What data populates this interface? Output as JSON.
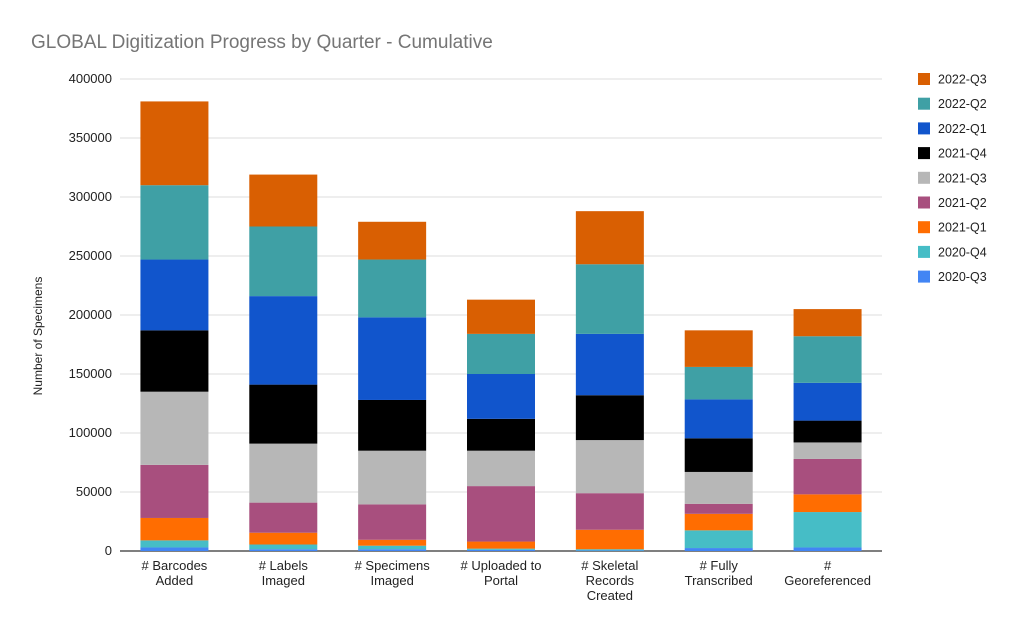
{
  "chart_data": {
    "type": "bar",
    "stacked": true,
    "title": "GLOBAL Digitization Progress by Quarter - Cumulative",
    "xlabel": "",
    "ylabel": "Number of Specimens",
    "ylim": [
      0,
      400000
    ],
    "yticks": [
      0,
      50000,
      100000,
      150000,
      200000,
      250000,
      300000,
      350000,
      400000
    ],
    "grid": true,
    "legend_position": "right",
    "categories": [
      [
        "# Barcodes",
        "Added"
      ],
      [
        "# Labels",
        "Imaged"
      ],
      [
        "# Specimens",
        "Imaged"
      ],
      [
        "# Uploaded to",
        "Portal"
      ],
      [
        "# Skeletal",
        "Records",
        "Created"
      ],
      [
        "# Fully",
        "Transcribed"
      ],
      [
        "#",
        "Georeferenced"
      ]
    ],
    "series": [
      {
        "name": "2020-Q3",
        "color": "#4285f4",
        "values": [
          3000,
          1500,
          1500,
          1000,
          500,
          2500,
          3000
        ]
      },
      {
        "name": "2020-Q4",
        "color": "#46bdc6",
        "values": [
          6000,
          4000,
          3000,
          1000,
          1000,
          15000,
          30000
        ]
      },
      {
        "name": "2021-Q1",
        "color": "#ff6d01",
        "values": [
          19000,
          10000,
          5000,
          6000,
          16500,
          14000,
          15000
        ]
      },
      {
        "name": "2021-Q2",
        "color": "#a84f7e",
        "values": [
          45000,
          25500,
          30000,
          47000,
          31000,
          8500,
          30000
        ]
      },
      {
        "name": "2021-Q3",
        "color": "#b7b7b7",
        "values": [
          62000,
          50000,
          45500,
          30000,
          45000,
          27000,
          14000
        ]
      },
      {
        "name": "2021-Q4",
        "color": "#000000",
        "values": [
          52000,
          50000,
          43000,
          27000,
          38000,
          28500,
          18500
        ]
      },
      {
        "name": "2022-Q1",
        "color": "#1155cc",
        "values": [
          60000,
          75000,
          70000,
          38000,
          52000,
          33000,
          32000
        ]
      },
      {
        "name": "2022-Q2",
        "color": "#3fa0a5",
        "values": [
          63000,
          59000,
          49000,
          34000,
          59000,
          27500,
          39500
        ]
      },
      {
        "name": "2022-Q3",
        "color": "#d95f02",
        "values": [
          71000,
          44000,
          32000,
          29000,
          45000,
          31000,
          23000
        ]
      }
    ]
  }
}
